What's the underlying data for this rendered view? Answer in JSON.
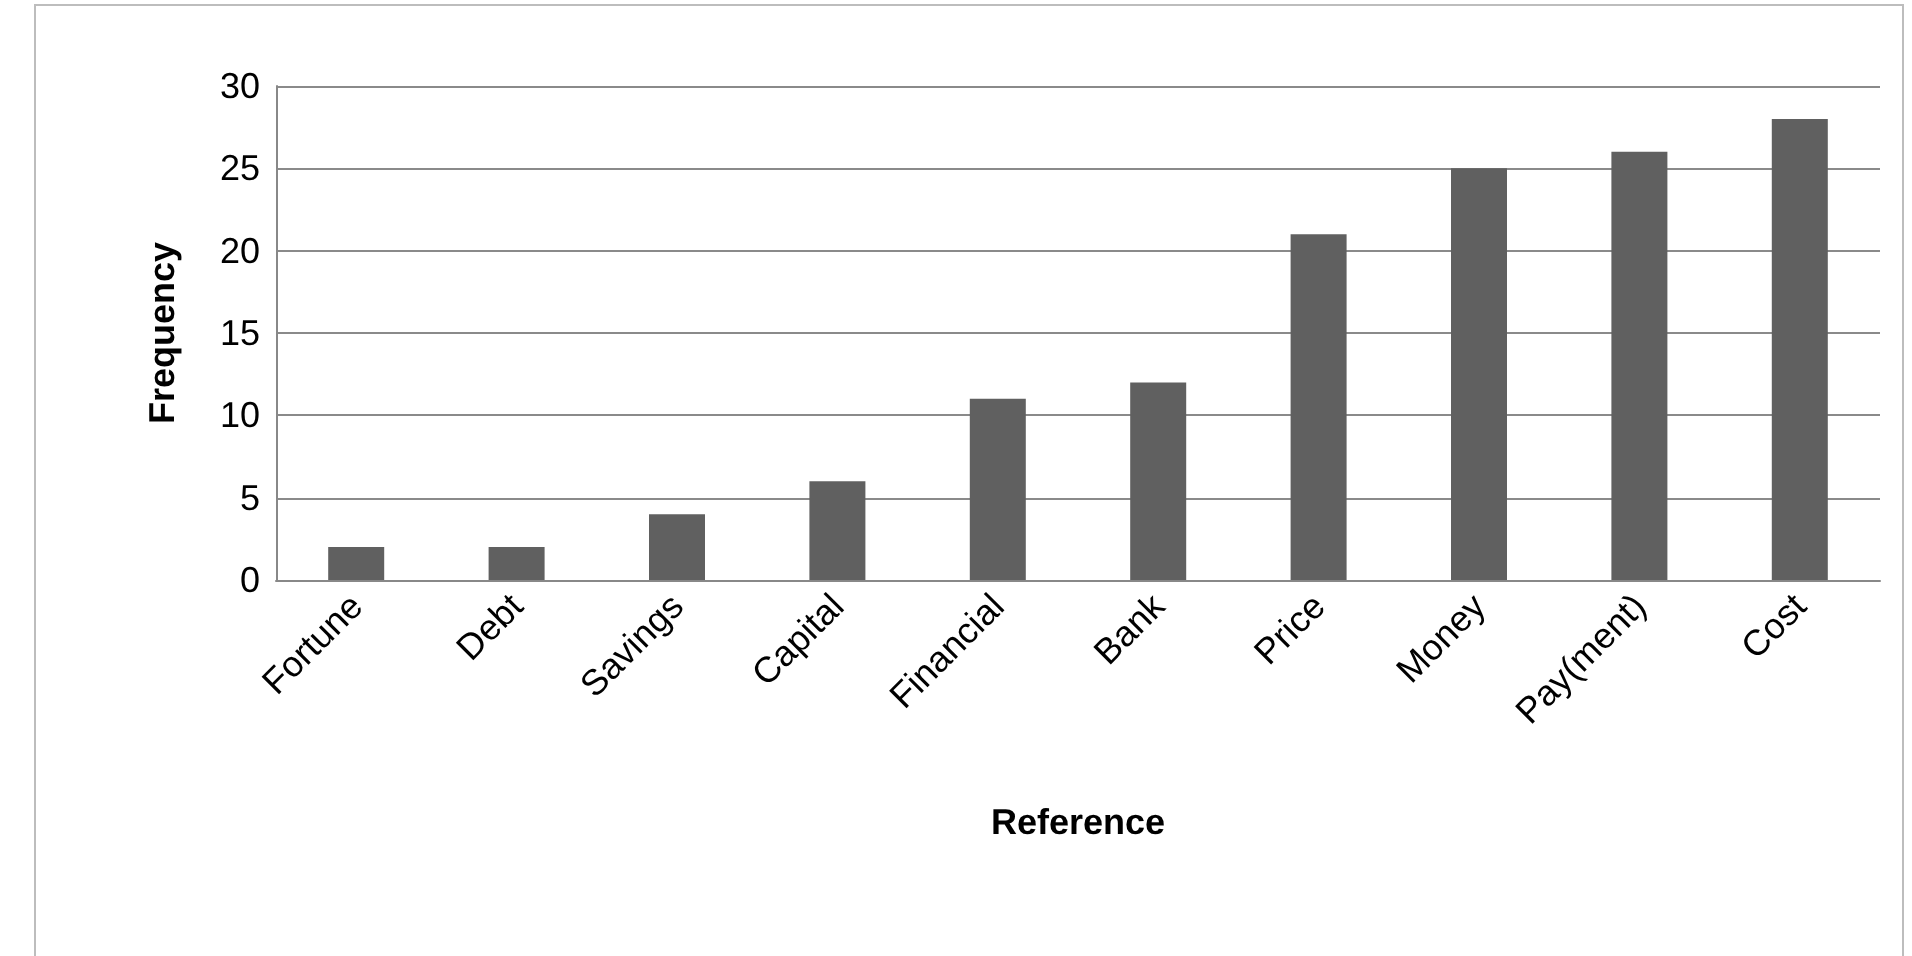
{
  "chart_data": {
    "type": "bar",
    "xlabel": "Reference",
    "ylabel": "Frequency",
    "categories": [
      "Fortune",
      "Debt",
      "Savings",
      "Capital",
      "Financial",
      "Bank",
      "Price",
      "Money",
      "Pay(ment)",
      "Cost"
    ],
    "values": [
      2,
      2,
      4,
      6,
      11,
      12,
      21,
      25,
      26,
      28
    ],
    "color": "#606060",
    "ylim": [
      0,
      30
    ],
    "yticks": [
      0,
      5,
      10,
      15,
      20,
      25,
      30
    ],
    "grid": "y"
  }
}
